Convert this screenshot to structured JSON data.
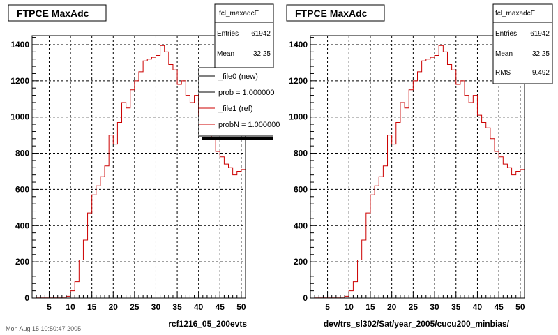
{
  "colors": {
    "new": "#000000",
    "ref": "#cc0000",
    "grid": "#000000",
    "frame": "#000000"
  },
  "footer": "Mon Aug 15 10:50:47 2005",
  "chart_data": [
    {
      "type": "line",
      "title": "FTPCE MaxAdc",
      "xlabel": "rcf1216_05_200evts",
      "xlim": [
        1,
        51
      ],
      "ylim": [
        0,
        1450
      ],
      "xticks": [
        5,
        10,
        15,
        20,
        25,
        30,
        35,
        40,
        45,
        50
      ],
      "yticks": [
        0,
        200,
        400,
        600,
        800,
        1000,
        1200,
        1400
      ],
      "grid": true,
      "stats": {
        "name": "fcl_maxadcE",
        "rows": [
          {
            "label": "Entries",
            "value": "61942"
          },
          {
            "label": "Mean",
            "value": "32.25"
          }
        ]
      },
      "legend": {
        "position": "right",
        "entries": [
          {
            "label": "_file0 (new)",
            "color": "#000000"
          },
          {
            "label": "prob = 1.000000",
            "color": "#000000"
          },
          {
            "label": "_file1 (ref)",
            "color": "#cc0000"
          },
          {
            "label": "probN = 1.000000",
            "color": "#cc0000"
          }
        ]
      },
      "series": [
        {
          "x": [
            1,
            2,
            3,
            4,
            5,
            6,
            7,
            8,
            9,
            10,
            11,
            12,
            13,
            14,
            15,
            16,
            17,
            18,
            19,
            20,
            21,
            22,
            23,
            24,
            25,
            26,
            27,
            28,
            29,
            30,
            31,
            32,
            33,
            34,
            35,
            36,
            37,
            38,
            39,
            40,
            41,
            42,
            43,
            44,
            45,
            46,
            47,
            48,
            49,
            50
          ],
          "values": [
            0,
            5,
            5,
            5,
            5,
            5,
            5,
            5,
            10,
            40,
            90,
            210,
            320,
            470,
            570,
            620,
            670,
            730,
            900,
            850,
            970,
            1080,
            1050,
            1150,
            1200,
            1250,
            1310,
            1320,
            1330,
            1340,
            1395,
            1360,
            1290,
            1260,
            1180,
            1200,
            1120,
            1080,
            1120,
            1010,
            970,
            940,
            880,
            810,
            780,
            740,
            720,
            680,
            700,
            710
          ]
        }
      ]
    },
    {
      "type": "line",
      "title": "FTPCE MaxAdc",
      "xlabel": "dev/trs_sl302/Sat/year_2005/cucu200_minbias/",
      "xlim": [
        1,
        51
      ],
      "ylim": [
        0,
        1450
      ],
      "xticks": [
        5,
        10,
        15,
        20,
        25,
        30,
        35,
        40,
        45,
        50
      ],
      "yticks": [
        0,
        200,
        400,
        600,
        800,
        1000,
        1200,
        1400
      ],
      "grid": true,
      "stats": {
        "name": "fcl_maxadcE",
        "rows": [
          {
            "label": "Entries",
            "value": "61942"
          },
          {
            "label": "Mean",
            "value": "32.25"
          },
          {
            "label": "RMS",
            "value": "9.492"
          }
        ]
      },
      "series": [
        {
          "x": [
            1,
            2,
            3,
            4,
            5,
            6,
            7,
            8,
            9,
            10,
            11,
            12,
            13,
            14,
            15,
            16,
            17,
            18,
            19,
            20,
            21,
            22,
            23,
            24,
            25,
            26,
            27,
            28,
            29,
            30,
            31,
            32,
            33,
            34,
            35,
            36,
            37,
            38,
            39,
            40,
            41,
            42,
            43,
            44,
            45,
            46,
            47,
            48,
            49,
            50
          ],
          "values": [
            0,
            5,
            5,
            5,
            5,
            5,
            5,
            5,
            10,
            40,
            90,
            210,
            320,
            470,
            570,
            620,
            670,
            730,
            900,
            850,
            970,
            1080,
            1050,
            1150,
            1200,
            1250,
            1310,
            1320,
            1330,
            1340,
            1395,
            1360,
            1290,
            1260,
            1180,
            1200,
            1120,
            1080,
            1120,
            1010,
            970,
            940,
            880,
            810,
            780,
            740,
            720,
            680,
            700,
            710
          ]
        }
      ]
    }
  ]
}
